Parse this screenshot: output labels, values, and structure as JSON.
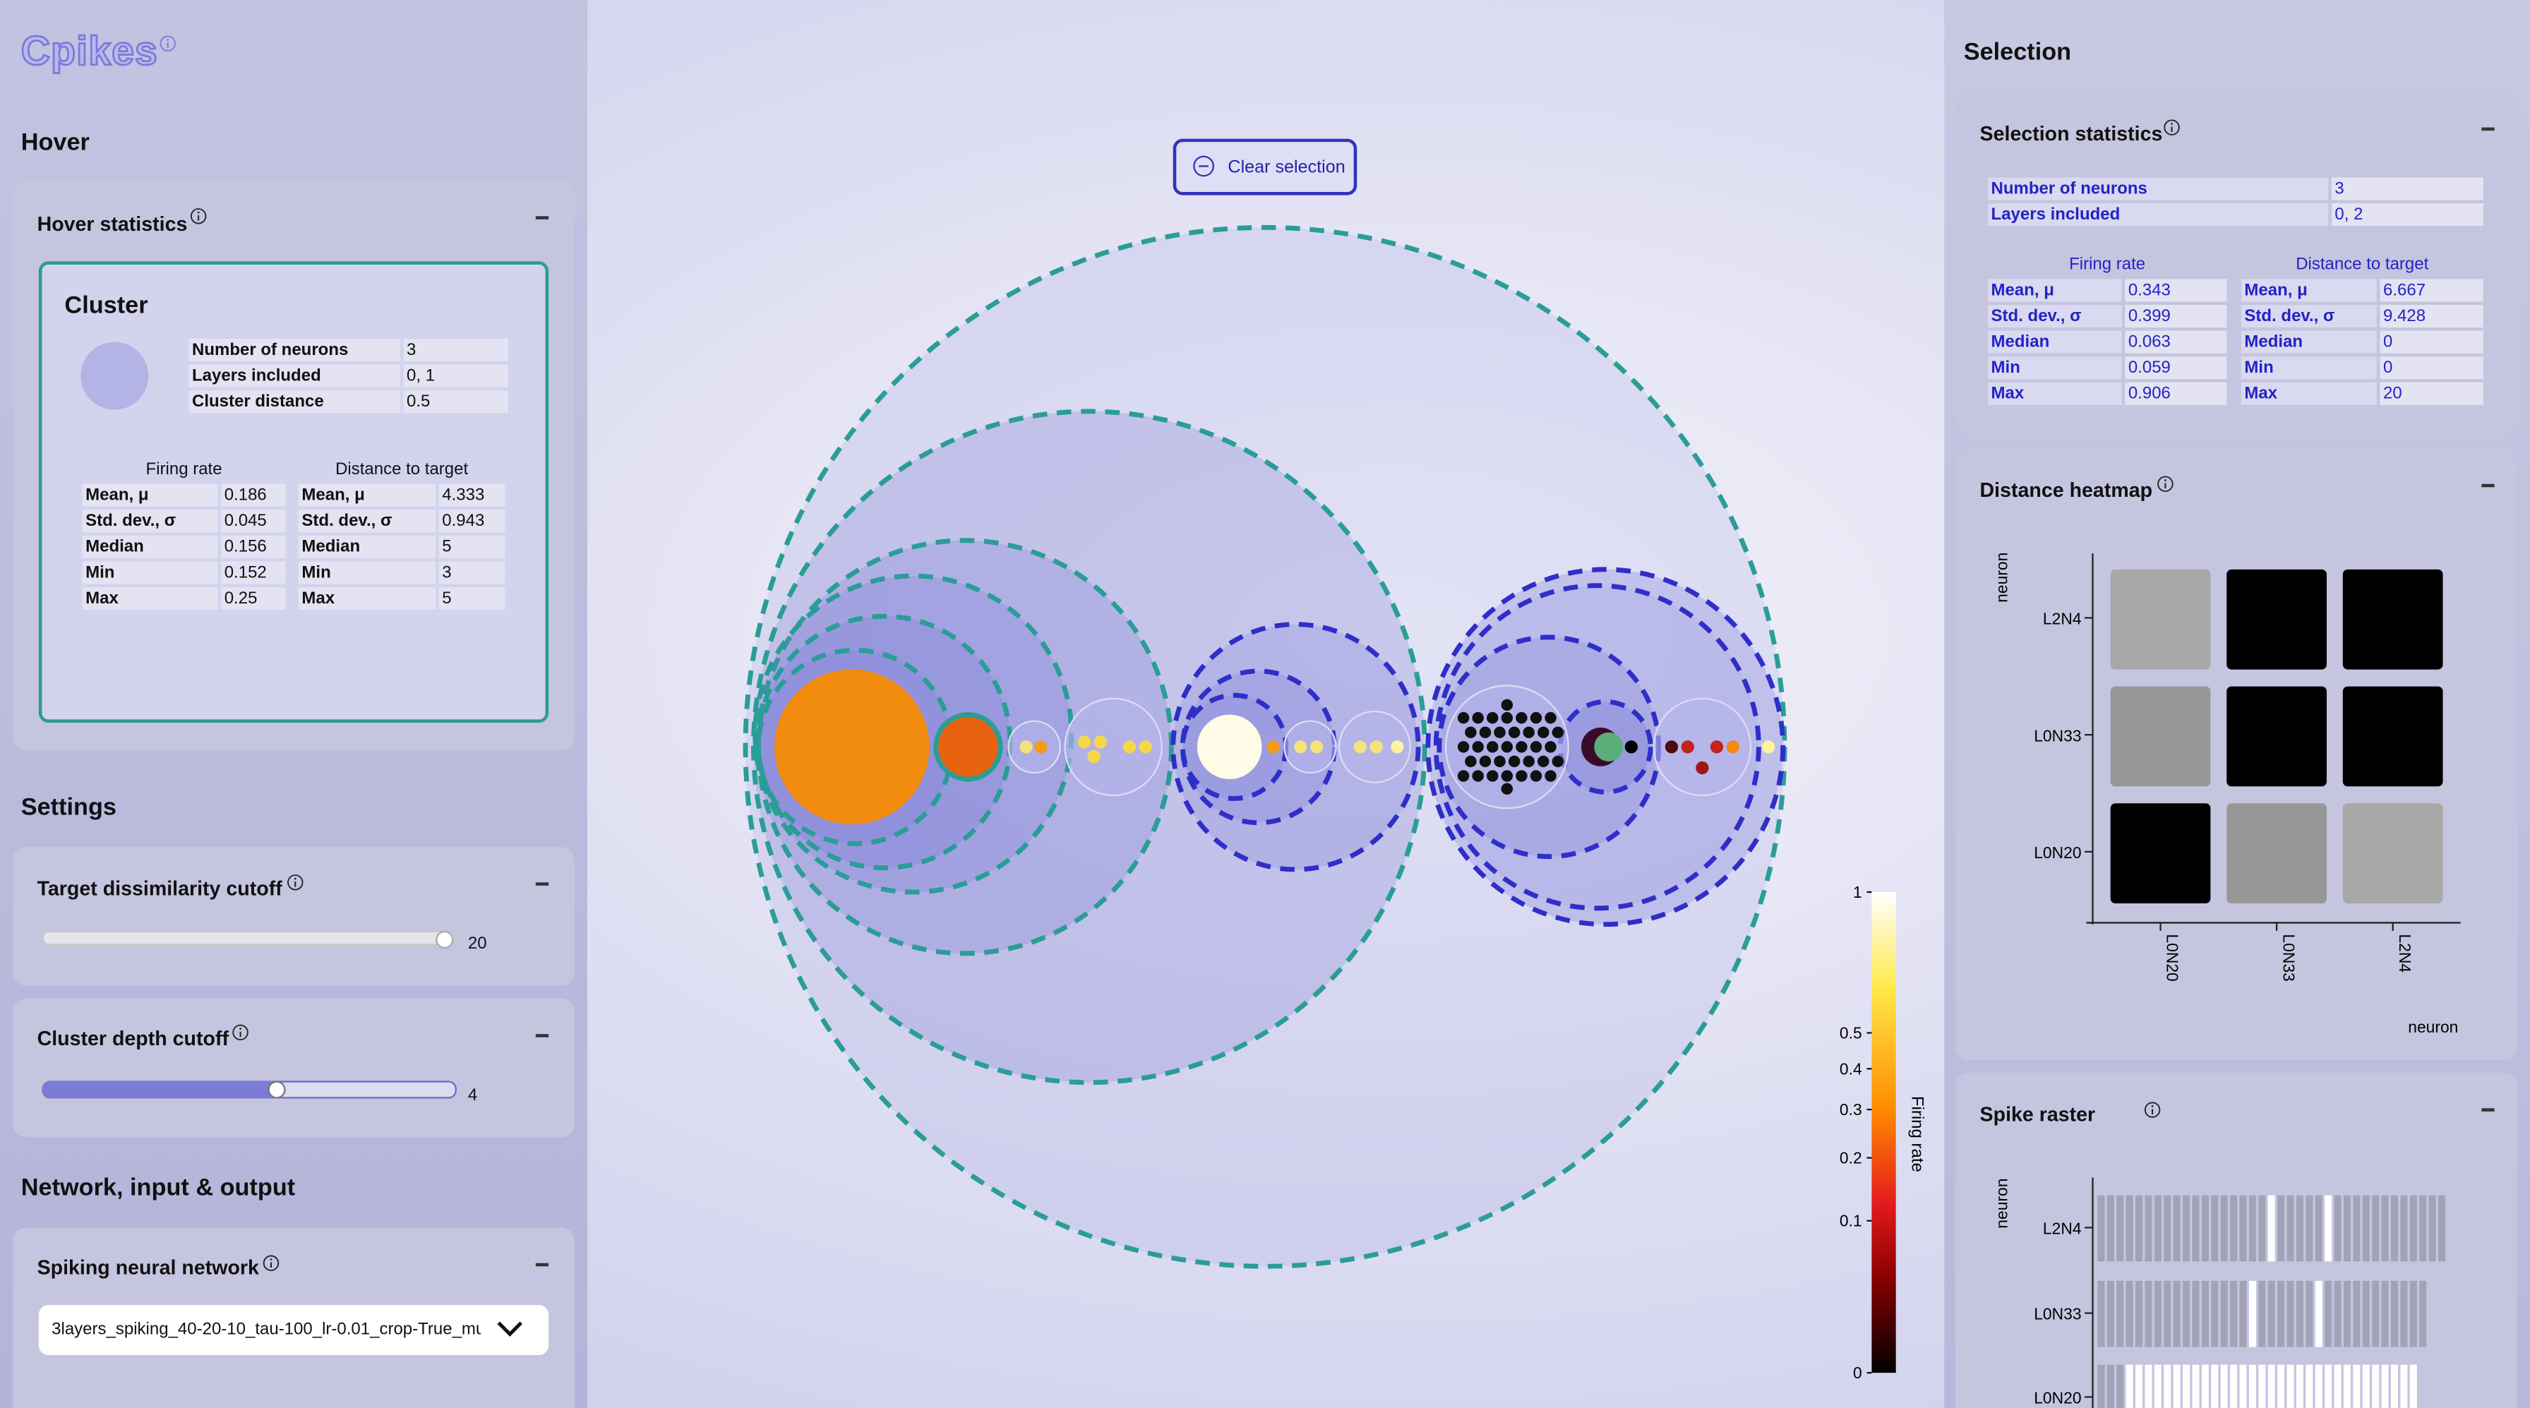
{
  "app": {
    "title": "Cpikes"
  },
  "hover": {
    "heading": "Hover",
    "panel_title": "Hover statistics",
    "card_title": "Cluster",
    "summary": [
      {
        "label": "Number of neurons",
        "value": 3
      },
      {
        "label": "Layers included",
        "value": "0, 1"
      },
      {
        "label": "Cluster distance",
        "value": 0.5
      }
    ],
    "firing_rate": {
      "title": "Firing rate",
      "rows": [
        {
          "label": "Mean, μ",
          "value": 0.186
        },
        {
          "label": "Std. dev., σ",
          "value": 0.045
        },
        {
          "label": "Median",
          "value": 0.156
        },
        {
          "label": "Min",
          "value": 0.152
        },
        {
          "label": "Max",
          "value": 0.25
        }
      ]
    },
    "distance": {
      "title": "Distance to target",
      "rows": [
        {
          "label": "Mean, μ",
          "value": 4.333
        },
        {
          "label": "Std. dev., σ",
          "value": 0.943
        },
        {
          "label": "Median",
          "value": 5
        },
        {
          "label": "Min",
          "value": 3
        },
        {
          "label": "Max",
          "value": 5
        }
      ]
    }
  },
  "settings": {
    "heading": "Settings",
    "target_cutoff": {
      "title": "Target dissimilarity cutoff",
      "value": 20
    },
    "cluster_cutoff": {
      "title": "Cluster depth cutoff",
      "value": 4
    }
  },
  "network": {
    "heading": "Network, input & output",
    "panel_title": "Spiking neural network",
    "selected": "3layers_spiking_40-20-10_tau-100_lr-0.01_crop-True_mu"
  },
  "canvas": {
    "clear_button": "Clear selection",
    "colorbar": {
      "label": "Firing rate",
      "scale": "sqrt",
      "ylim": [
        0,
        1
      ],
      "yticks": [
        0,
        0.1,
        0.2,
        0.3,
        0.4,
        0.5,
        1
      ]
    }
  },
  "selection": {
    "heading": "Selection",
    "panel_title": "Selection statistics",
    "summary": [
      {
        "label": "Number of neurons",
        "value": 3
      },
      {
        "label": "Layers included",
        "value": "0, 2"
      }
    ],
    "firing_rate": {
      "title": "Firing rate",
      "rows": [
        {
          "label": "Mean, μ",
          "value": 0.343
        },
        {
          "label": "Std. dev., σ",
          "value": 0.399
        },
        {
          "label": "Median",
          "value": 0.063
        },
        {
          "label": "Min",
          "value": 0.059
        },
        {
          "label": "Max",
          "value": 0.906
        }
      ]
    },
    "distance": {
      "title": "Distance to target",
      "rows": [
        {
          "label": "Mean, μ",
          "value": 6.667
        },
        {
          "label": "Std. dev., σ",
          "value": 9.428
        },
        {
          "label": "Median",
          "value": 0
        },
        {
          "label": "Min",
          "value": 0
        },
        {
          "label": "Max",
          "value": 20
        }
      ]
    }
  },
  "heatmap": {
    "title": "Distance heatmap",
    "xlabel": "neuron",
    "ylabel": "neuron",
    "x": [
      "L0N20",
      "L0N33",
      "L2N4"
    ],
    "y": [
      "L2N4",
      "L0N33",
      "L0N20"
    ],
    "values": [
      [
        20,
        0,
        0
      ],
      [
        18,
        0,
        0
      ],
      [
        0,
        18,
        20
      ]
    ]
  },
  "raster": {
    "title": "Spike raster",
    "ylabel": "neuron",
    "neurons": [
      "L2N4",
      "L0N33",
      "L0N20"
    ],
    "xlim": [
      0,
      37
    ],
    "spikes": [
      [
        0,
        1,
        2,
        3,
        4,
        5,
        6,
        7,
        8,
        9,
        10,
        11,
        12,
        13,
        14,
        15,
        16,
        17,
        19,
        20,
        21,
        22,
        23,
        25,
        26,
        27,
        28,
        29,
        30,
        31,
        32,
        33,
        34,
        35,
        36
      ],
      [
        0,
        1,
        2,
        3,
        4,
        5,
        6,
        7,
        8,
        9,
        10,
        11,
        12,
        13,
        14,
        15,
        17,
        18,
        19,
        20,
        21,
        22,
        24,
        25,
        26,
        27,
        28,
        29,
        30,
        31,
        32,
        33,
        34
      ],
      [
        0,
        1,
        2
      ]
    ],
    "selected_spikes": [
      [
        18,
        24
      ],
      [
        16,
        23
      ],
      [
        3,
        4,
        5,
        6,
        7,
        8,
        9,
        10,
        11,
        12,
        13,
        14,
        15,
        16,
        17,
        18,
        19,
        20,
        21,
        22,
        23,
        24,
        25,
        26,
        27,
        28,
        29,
        30,
        31,
        32,
        33
      ]
    ]
  }
}
